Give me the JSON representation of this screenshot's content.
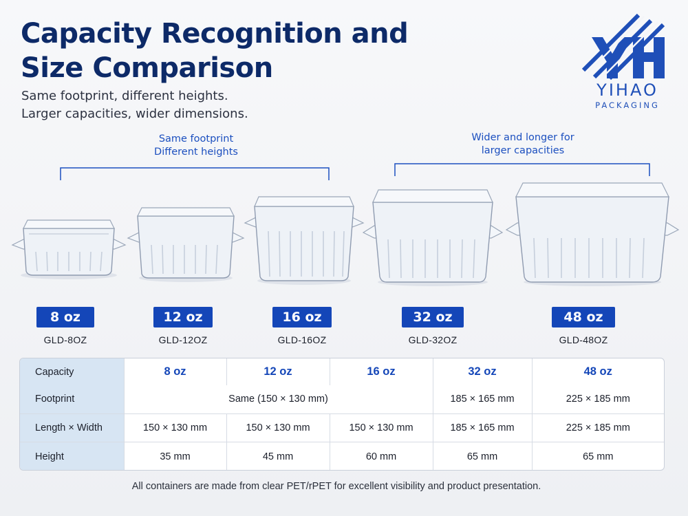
{
  "header": {
    "title_line1": "Capacity Recognition and",
    "title_line2": "Size Comparison",
    "subtitle_line1": "Same footprint, different heights.",
    "subtitle_line2": "Larger capacities, wider dimensions."
  },
  "brand": {
    "name": "YIHAO",
    "tagline": "PACKAGING",
    "logo_mark": "YH",
    "color": "#1f4fb8"
  },
  "annotations": {
    "left_line1": "Same footprint",
    "left_line2": "Different heights",
    "right_line1": "Wider and longer for",
    "right_line2": "larger capacities"
  },
  "products": [
    {
      "capacity": "8 oz",
      "code": "GLD-8OZ"
    },
    {
      "capacity": "12 oz",
      "code": "GLD-12OZ"
    },
    {
      "capacity": "16 oz",
      "code": "GLD-16OZ"
    },
    {
      "capacity": "32 oz",
      "code": "GLD-32OZ"
    },
    {
      "capacity": "48 oz",
      "code": "GLD-48OZ"
    }
  ],
  "table": {
    "rows": {
      "capacity": {
        "label": "Capacity",
        "values": [
          "8 oz",
          "12 oz",
          "16 oz",
          "32 oz",
          "48 oz"
        ]
      },
      "footprint": {
        "label": "Footprint",
        "merged": "Same (150 × 130 mm)",
        "values": [
          "185 × 165 mm",
          "225 × 185 mm"
        ]
      },
      "length_width": {
        "label": "Length × Width",
        "values": [
          "150 × 130 mm",
          "150 × 130 mm",
          "150 × 130 mm",
          "185 × 165 mm",
          "225 × 185 mm"
        ]
      },
      "height": {
        "label": "Height",
        "values": [
          "35 mm",
          "45 mm",
          "60 mm",
          "65 mm",
          "65 mm"
        ]
      }
    }
  },
  "footnote": "All containers are made from clear PET/rPET for excellent visibility and product presentation.",
  "colors": {
    "title": "#0d2a68",
    "accent": "#1446b8",
    "table_header_bg": "#d7e5f3"
  }
}
